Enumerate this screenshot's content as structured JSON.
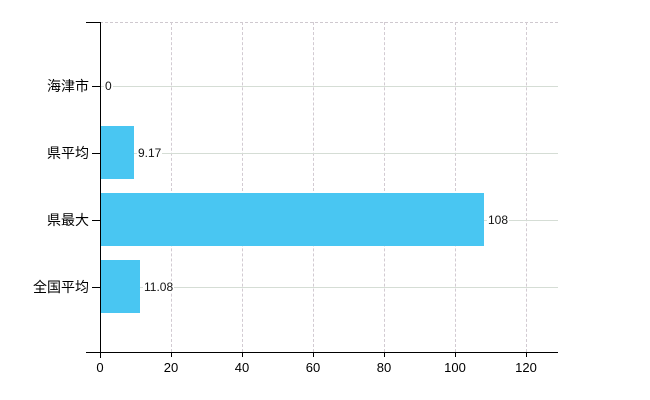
{
  "chart_data": {
    "type": "bar",
    "orientation": "horizontal",
    "title": "",
    "xlabel": "",
    "ylabel": "",
    "categories": [
      "海津市",
      "県平均",
      "県最大",
      "全国平均"
    ],
    "values": [
      0,
      9.17,
      108,
      11.08
    ],
    "value_labels": [
      "0",
      "9.17",
      "108",
      "11.08"
    ],
    "x_ticks": [
      0,
      20,
      40,
      60,
      80,
      100,
      120
    ],
    "x_tick_labels": [
      "0",
      "20",
      "40",
      "60",
      "80",
      "100",
      "120"
    ],
    "xlim": [
      0,
      129
    ],
    "grid": true,
    "legend": false,
    "colors": {
      "bar": "#49c6f2",
      "horizontal_grid": "#d5ddd5",
      "vertical_grid": "#d2cbd2",
      "axis": "#000000",
      "category_label": "#000000",
      "value_label": "#141414",
      "background": "#ffffff"
    }
  }
}
